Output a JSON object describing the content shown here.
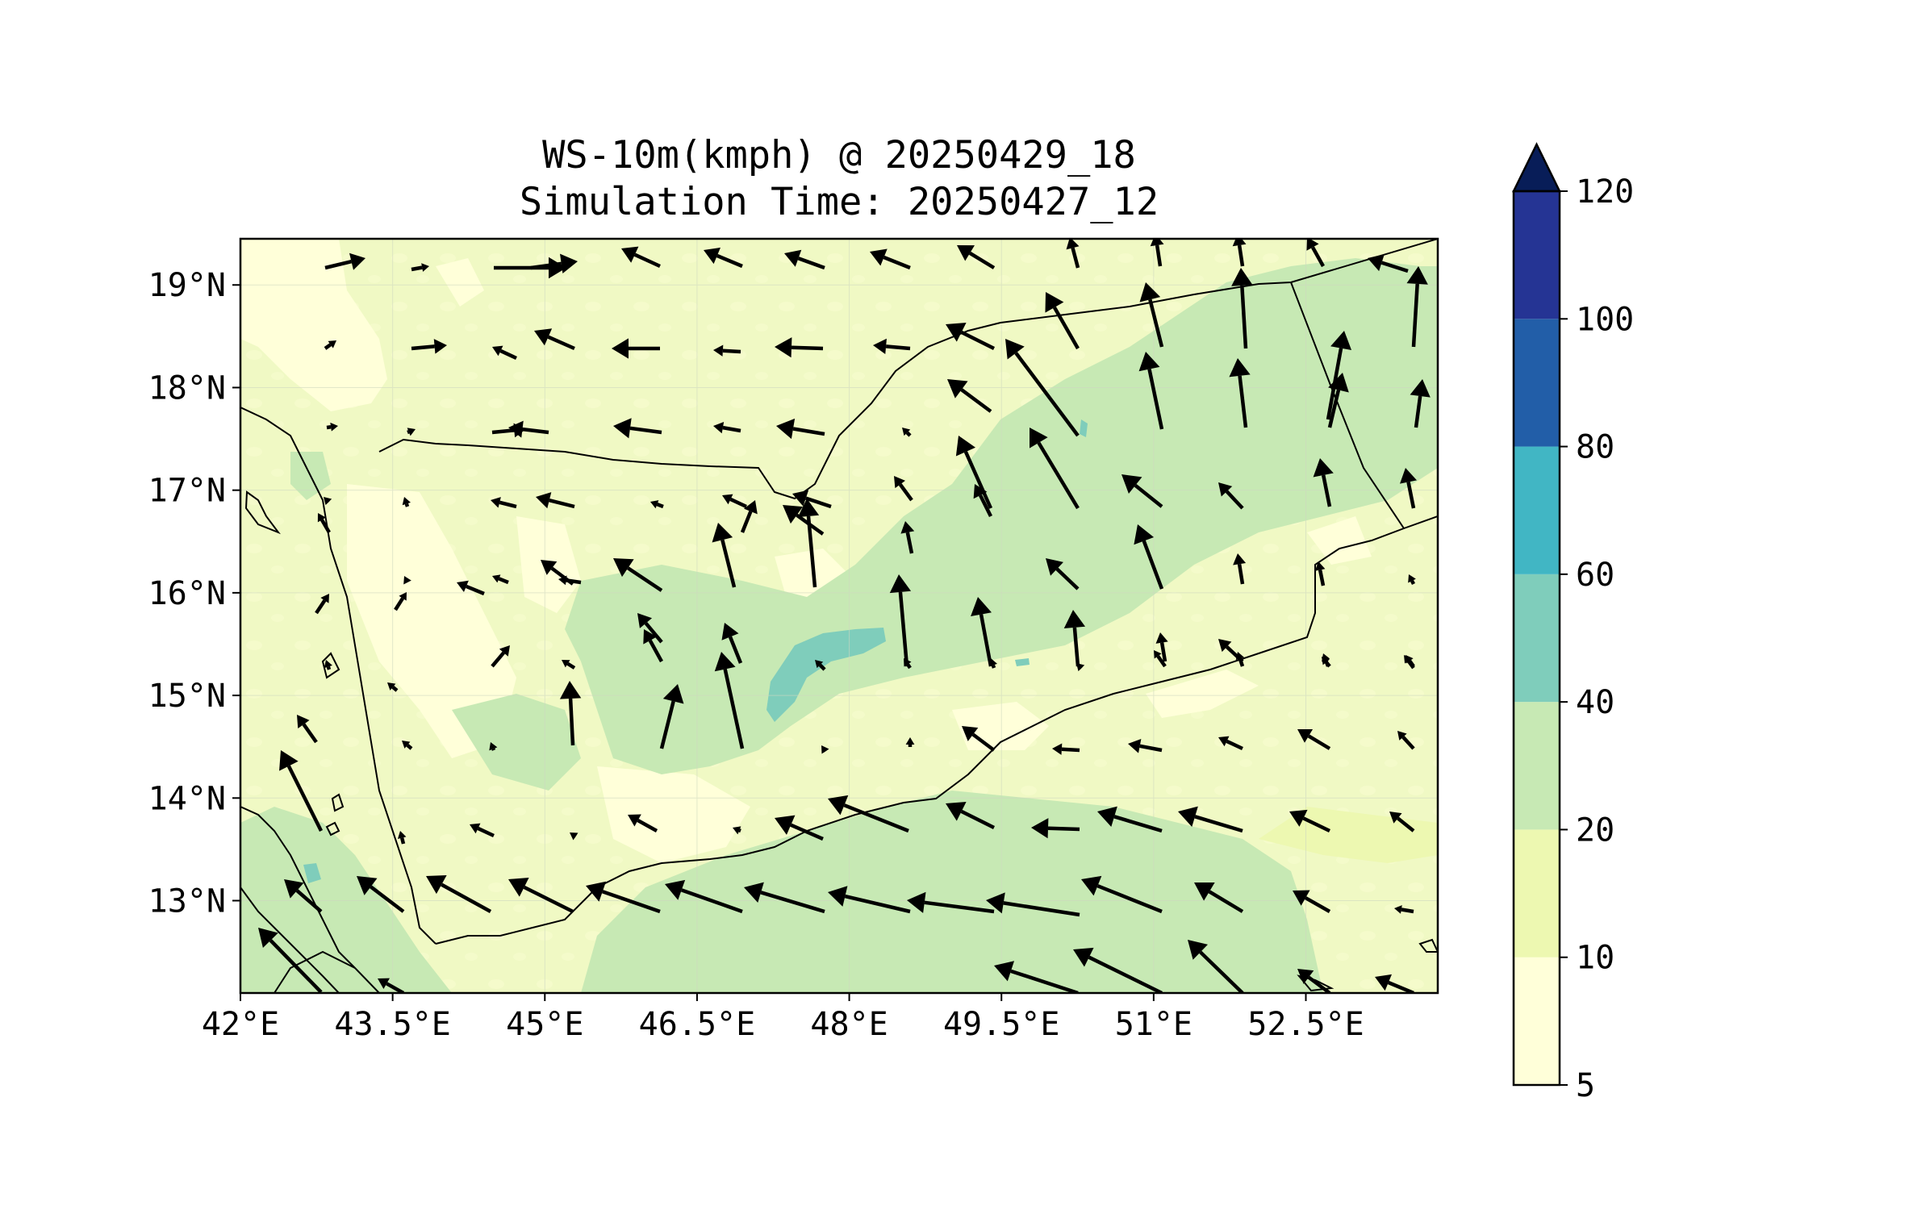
{
  "figure": {
    "title_line1": "WS-10m(kmph) @ 20250429_18",
    "title_line2": "Simulation Time: 20250427_12"
  },
  "map": {
    "lon_range": [
      42.0,
      53.8
    ],
    "lat_range": [
      12.1,
      19.45
    ],
    "x_ticks": [
      {
        "value": 42.0,
        "label": "42°E"
      },
      {
        "value": 43.5,
        "label": "43.5°E"
      },
      {
        "value": 45.0,
        "label": "45°E"
      },
      {
        "value": 46.5,
        "label": "46.5°E"
      },
      {
        "value": 48.0,
        "label": "48°E"
      },
      {
        "value": 49.5,
        "label": "49.5°E"
      },
      {
        "value": 51.0,
        "label": "51°E"
      },
      {
        "value": 52.5,
        "label": "52.5°E"
      }
    ],
    "y_ticks": [
      {
        "value": 13,
        "label": "13°N"
      },
      {
        "value": 14,
        "label": "14°N"
      },
      {
        "value": 15,
        "label": "15°N"
      },
      {
        "value": 16,
        "label": "16°N"
      },
      {
        "value": 17,
        "label": "17°N"
      },
      {
        "value": 18,
        "label": "18°N"
      },
      {
        "value": 19,
        "label": "19°N"
      }
    ],
    "grid": true,
    "background_color": "#f0f9c4",
    "overlay": "coastlines-and-borders",
    "wind_arrows_color": "#000000"
  },
  "colorbar": {
    "levels": [
      {
        "from": 5,
        "to": 10,
        "color": "#ffffd9"
      },
      {
        "from": 10,
        "to": 20,
        "color": "#edf8b1"
      },
      {
        "from": 20,
        "to": 40,
        "color": "#c7e9b4"
      },
      {
        "from": 40,
        "to": 60,
        "color": "#7fcdbb"
      },
      {
        "from": 60,
        "to": 80,
        "color": "#41b6c4"
      },
      {
        "from": 80,
        "to": 100,
        "color": "#225ea8"
      },
      {
        "from": 100,
        "to": 120,
        "color": "#253494"
      }
    ],
    "extend_color": "#081d58",
    "extend": "max",
    "tick_labels": [
      "5",
      "10",
      "20",
      "40",
      "60",
      "80",
      "100",
      "120"
    ]
  }
}
